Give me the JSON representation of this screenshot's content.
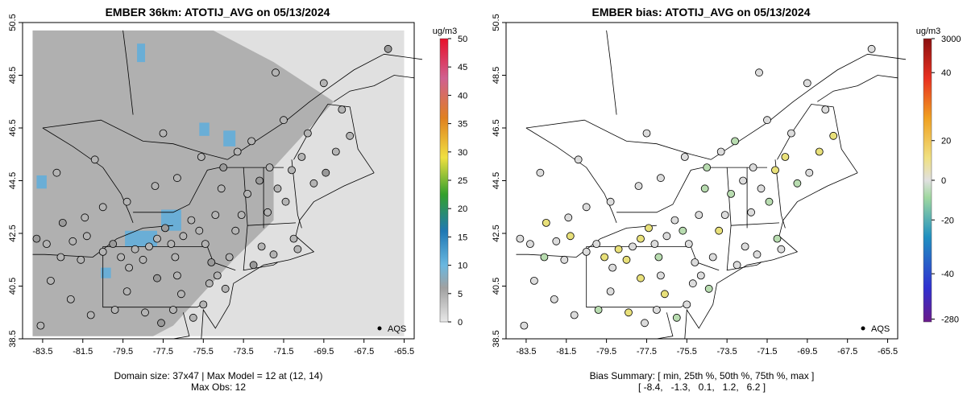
{
  "left": {
    "title": "EMBER 36km: ATOTIJ_AVG on 05/13/2024",
    "unit": "ug/m3",
    "legend_ticks": [
      "0",
      "5",
      "10",
      "15",
      "20",
      "25",
      "30",
      "35",
      "40",
      "45",
      "50"
    ],
    "legend_range": [
      0,
      50
    ],
    "obs_label": "AQS",
    "caption_line1": "Domain size: 37x47 | Max Model = 12 at (12, 14)",
    "caption_line2": "Max Obs: 12"
  },
  "right": {
    "title": "EMBER bias: ATOTIJ_AVG on 05/13/2024",
    "unit": "ug/m3",
    "legend_ticks": [
      "3000",
      "40",
      "20",
      "0",
      "-20",
      "-40",
      "-280"
    ],
    "obs_label": "AQS",
    "caption_line1": "Bias Summary: [ min, 25th %, 50th %, 75th %, max ]",
    "caption_line2": "[ -8.4,   -1.3,   0.1,   1.2,   6.2 ]"
  },
  "axes": {
    "x_ticks": [
      "-83.5",
      "-81.5",
      "-79.5",
      "-77.5",
      "-75.5",
      "-73.5",
      "-71.5",
      "-69.5",
      "-67.5",
      "-65.5"
    ],
    "y_ticks": [
      "38.5",
      "40.5",
      "42.5",
      "44.5",
      "46.5",
      "48.5",
      "50.5"
    ],
    "xlim": [
      -84.5,
      -65.0
    ],
    "ylim": [
      38.5,
      50.5
    ]
  },
  "colors": {
    "model_low": "#e0e0e0",
    "model_mid": "#b0b0b0",
    "model_high": "#6aaed6",
    "bias_zero": "#dcdcdc",
    "bias_pos": "#e8e07a",
    "bias_neg": "#b8dcb0"
  }
}
